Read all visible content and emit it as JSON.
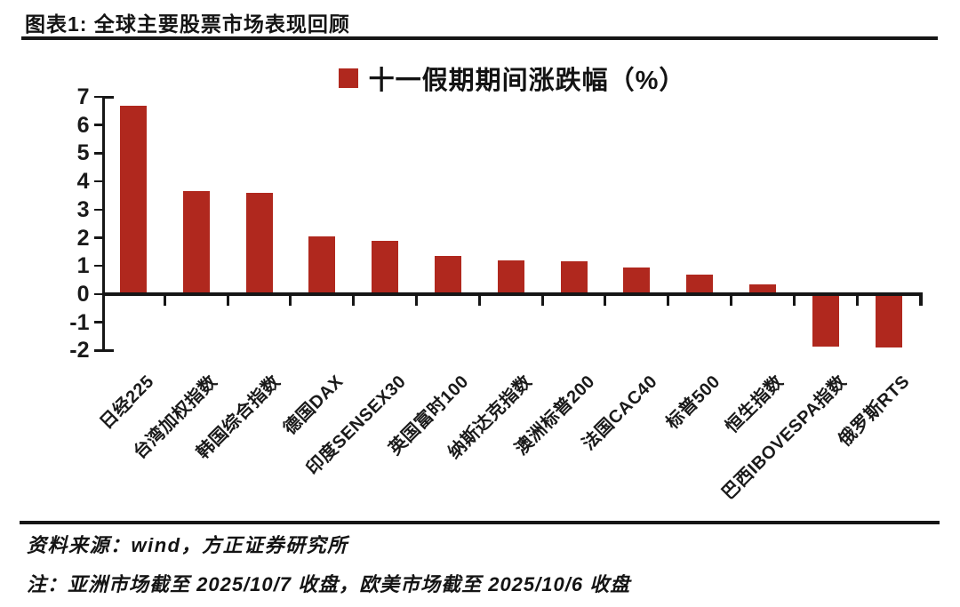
{
  "header": {
    "title": "图表1: 全球主要股票市场表现回顾"
  },
  "chart_data": {
    "type": "bar",
    "title": "图表1: 全球主要股票市场表现回顾",
    "legend": "十一假期期间涨跌幅（%）",
    "legend_position": "top-center",
    "categories": [
      "日经225",
      "台湾加权指数",
      "韩国综合指数",
      "德国DAX",
      "印度SENSEX30",
      "英国富时100",
      "纳斯达克指数",
      "澳洲标普200",
      "法国CAC40",
      "标普500",
      "恒生指数",
      "巴西IBOVESPA指数",
      "俄罗斯RTS"
    ],
    "values": [
      6.7,
      3.65,
      3.6,
      2.05,
      1.9,
      1.35,
      1.2,
      1.15,
      0.95,
      0.7,
      0.35,
      -1.85,
      -1.9
    ],
    "unit": "%",
    "ylim": [
      -2,
      7
    ],
    "ytick_step": 1,
    "yticks": [
      7,
      6,
      5,
      4,
      3,
      2,
      1,
      0,
      -1,
      -2
    ],
    "grid": false,
    "bar_color": "#b0281e",
    "axis_color": "#161616"
  },
  "footer": {
    "source": "资料来源：wind，方正证券研究所",
    "note": "注：亚洲市场截至 2025/10/7 收盘，欧美市场截至 2025/10/6 收盘"
  }
}
